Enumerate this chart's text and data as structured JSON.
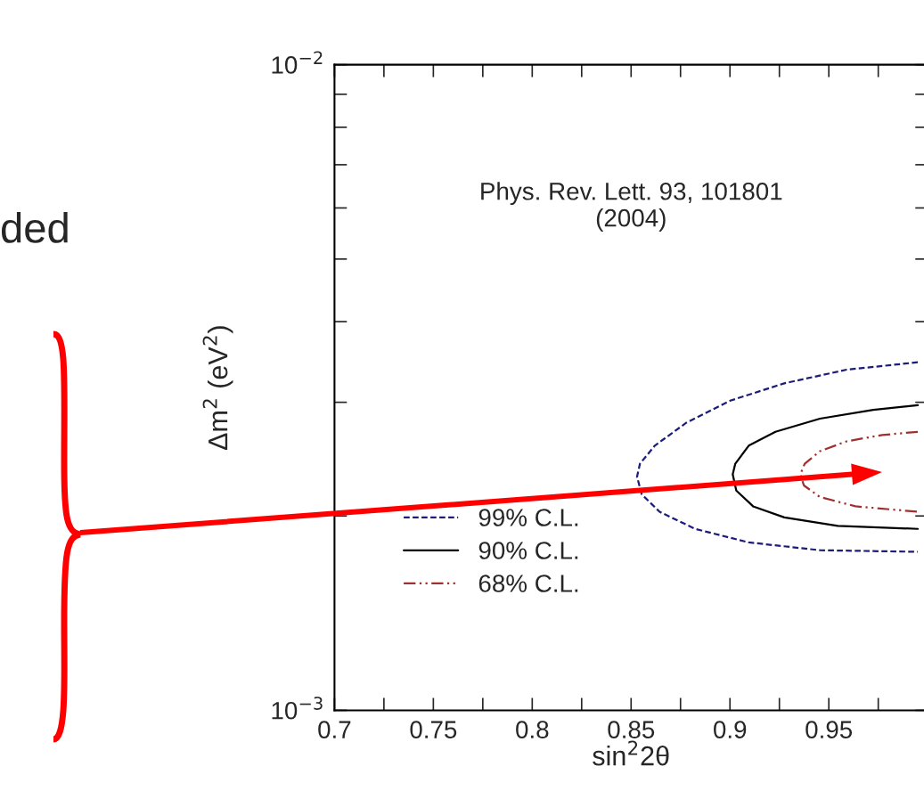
{
  "chart_data": {
    "type": "line",
    "xlabel": "sin$^{2}$2θ",
    "ylabel": "Δm$^{2}$ (eV$^{2}$)",
    "annotations": [
      "Phys. Rev. Lett. 93, 101801\n(2004)",
      "ded"
    ],
    "log": "y",
    "xlim": [
      0.7,
      1.0
    ],
    "ylim": [
      0.001,
      0.01
    ],
    "xticks": [
      0.7,
      {
        "value": 0.725,
        "label": null
      },
      0.75,
      {
        "value": 0.775,
        "label": null
      },
      0.8,
      {
        "value": 0.825,
        "label": null
      },
      0.85,
      {
        "value": 0.875,
        "label": null
      },
      0.9,
      {
        "value": 0.925,
        "label": null
      },
      0.95,
      {
        "value": 0.975,
        "label": null
      }
    ],
    "yticks": [
      {
        "value": 0.001,
        "label": "10$^{−3}$"
      },
      {
        "value": 0.002,
        "label": null
      },
      {
        "value": 0.003,
        "label": null
      },
      {
        "value": 0.004,
        "label": null
      },
      {
        "value": 0.005,
        "label": null
      },
      {
        "value": 0.006,
        "label": null
      },
      {
        "value": 0.007,
        "label": null
      },
      {
        "value": 0.008,
        "label": null
      },
      {
        "value": 0.009,
        "label": null
      },
      {
        "value": 0.01,
        "label": "10$^{−2}$"
      }
    ],
    "grid": false,
    "legend": "bottom left",
    "series": [
      {
        "name": "99% C.L.",
        "color": "#1c1c7a",
        "line_style": "dashed",
        "x": [
          0.995,
          0.959,
          0.9275,
          0.9005,
          0.878,
          0.862,
          0.8545,
          0.853,
          0.8554,
          0.8644,
          0.8824,
          0.9095,
          0.9455,
          0.995
        ],
        "values": [
          0.00346,
          0.00337,
          0.00321,
          0.00302,
          0.00279,
          0.00257,
          0.00241,
          0.0023,
          0.00216,
          0.00203,
          0.00191,
          0.00182,
          0.00177,
          0.00176
        ]
      },
      {
        "name": "90% C.L.",
        "color": "#000000",
        "line_style": "solid",
        "x": [
          0.995,
          0.9725,
          0.9455,
          0.923,
          0.9095,
          0.9027,
          0.9014,
          0.9032,
          0.9117,
          0.9275,
          0.9545,
          0.995
        ],
        "values": [
          0.00297,
          0.00292,
          0.00283,
          0.0027,
          0.00257,
          0.00241,
          0.00232,
          0.00219,
          0.00207,
          0.00199,
          0.00193,
          0.00191
        ]
      },
      {
        "name": "68% C.L.",
        "color": "#a03030",
        "line_style": "dotted",
        "x": [
          0.995,
          0.977,
          0.959,
          0.9455,
          0.9378,
          0.9356,
          0.9374,
          0.9455,
          0.9635,
          0.995
        ],
        "values": [
          0.0027,
          0.00267,
          0.00261,
          0.00252,
          0.00241,
          0.00232,
          0.00223,
          0.00214,
          0.00207,
          0.00203
        ]
      }
    ]
  }
}
